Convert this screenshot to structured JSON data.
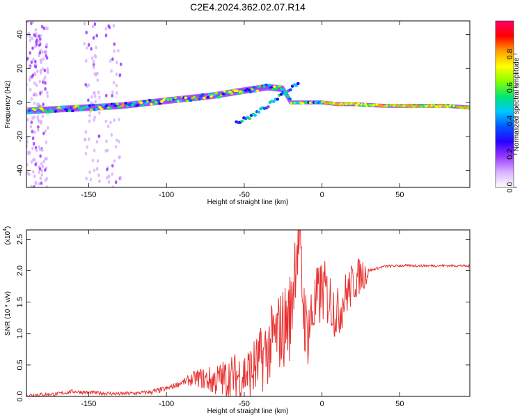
{
  "title": "C2E4.2024.362.02.07.R14",
  "colors": {
    "spectrogram_background": "#ffffff",
    "snr_line": "#e8302f",
    "axes": "#000000"
  },
  "colormap": [
    "#ffffff",
    "#d9b3ff",
    "#9a3bff",
    "#2b00ff",
    "#0055ff",
    "#00c8ff",
    "#00e673",
    "#88ff00",
    "#ffff00",
    "#ffa000",
    "#ff0000",
    "#ff0066"
  ],
  "chart_data": [
    {
      "type": "heatmap",
      "title": "C2E4.2024.362.02.07.R14",
      "xlabel": "Height of straight line (km)",
      "ylabel": "Frequency (Hz)",
      "xlim": [
        -190,
        95
      ],
      "ylim": [
        -50,
        48
      ],
      "x_ticks": [
        -150,
        -100,
        -50,
        0,
        50
      ],
      "y_ticks": [
        -40,
        -20,
        0,
        20,
        40
      ],
      "y_tick_labels": [
        "-40",
        "-20",
        "0",
        "20",
        "40"
      ],
      "x_tick_labels": [
        "-150",
        "-100",
        "-50",
        "0",
        "50"
      ],
      "colorbar": {
        "label": "Normalized spectral amplitude",
        "range": [
          0,
          1
        ],
        "ticks": [
          "0.0",
          "0.2",
          "0.4",
          "0.6",
          "0.8"
        ]
      },
      "ridge": {
        "x": [
          -190,
          -170,
          -150,
          -130,
          -110,
          -90,
          -70,
          -50,
          -35,
          -25,
          -20,
          -10,
          0,
          10,
          20,
          40,
          60,
          80,
          95
        ],
        "y": [
          -5,
          -4,
          -3,
          -2,
          0,
          2,
          4,
          7,
          9,
          8,
          0,
          0,
          0,
          -1,
          -1,
          -2,
          -2,
          -2,
          -3
        ]
      },
      "secondary_branch": {
        "x": [
          -55,
          -45,
          -35,
          -25,
          -15
        ],
        "y": [
          -12,
          -8,
          -2,
          5,
          12
        ]
      }
    },
    {
      "type": "line",
      "xlabel": "Height of straight line (km)",
      "ylabel": "SNR (10 * v/v)",
      "y_scale_label": "(x10",
      "y_scale_exponent": "4",
      "xlim": [
        -190,
        95
      ],
      "ylim": [
        0,
        2.65
      ],
      "x_ticks": [
        -150,
        -100,
        -50,
        0,
        50
      ],
      "y_ticks": [
        0.0,
        0.5,
        1.0,
        1.5,
        2.0,
        2.5
      ],
      "x_tick_labels": [
        "-150",
        "-100",
        "-50",
        "0",
        "50"
      ],
      "y_tick_labels": [
        "0.0",
        "0.5",
        "1.0",
        "1.5",
        "2.0",
        "2.5"
      ],
      "series": [
        {
          "x": [
            -190,
            -170,
            -160,
            -150,
            -140,
            -130,
            -120,
            -110,
            -100,
            -90,
            -80,
            -70,
            -60,
            -50,
            -45,
            -40,
            -35,
            -30,
            -25,
            -20,
            -17,
            -15,
            -12,
            -10,
            -5,
            0,
            5,
            10,
            15,
            20,
            25,
            30,
            40,
            50,
            60,
            70,
            80,
            90,
            95
          ],
          "y": [
            0.02,
            0.04,
            0.08,
            0.06,
            0.05,
            0.04,
            0.05,
            0.07,
            0.12,
            0.22,
            0.3,
            0.25,
            0.3,
            0.35,
            0.4,
            0.55,
            0.75,
            0.95,
            1.1,
            1.3,
            2.3,
            2.5,
            1.5,
            1.0,
            1.4,
            1.7,
            1.55,
            1.3,
            1.6,
            1.8,
            1.95,
            2.0,
            2.07,
            2.08,
            2.08,
            2.08,
            2.08,
            2.08,
            2.07
          ]
        }
      ]
    }
  ]
}
